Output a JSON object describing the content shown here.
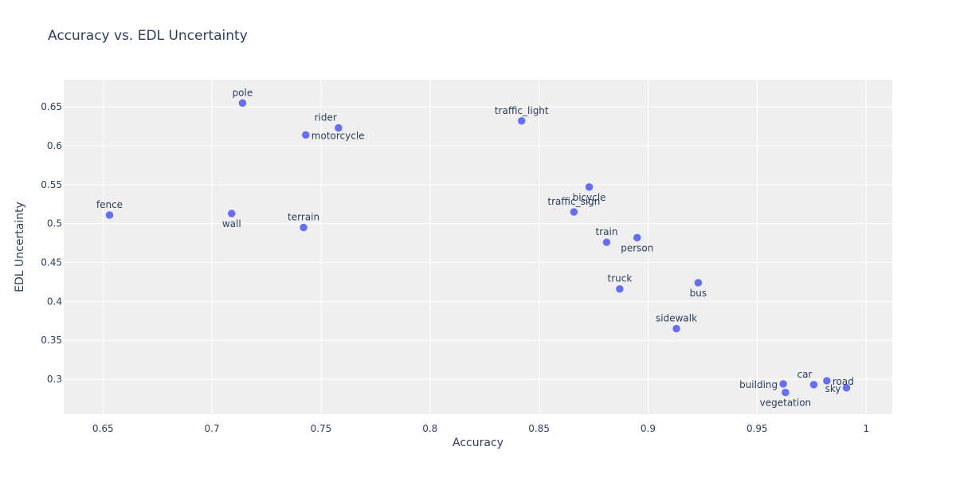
{
  "chart_data": {
    "type": "scatter",
    "title": "Accuracy vs. EDL Uncertainty",
    "xlabel": "Accuracy",
    "ylabel": "EDL Uncertainty",
    "xlim": [
      0.632,
      1.012
    ],
    "ylim": [
      0.255,
      0.685
    ],
    "x_ticks": [
      "0.65",
      "0.7",
      "0.75",
      "0.8",
      "0.85",
      "0.9",
      "0.95",
      "1"
    ],
    "y_ticks": [
      "0.3",
      "0.35",
      "0.4",
      "0.45",
      "0.5",
      "0.55",
      "0.6",
      "0.65"
    ],
    "grid": true,
    "marker_color": "#636efa",
    "plot_bgcolor": "#efefef",
    "points": [
      {
        "label": "pole",
        "x": 0.714,
        "y": 0.655,
        "pos": "top"
      },
      {
        "label": "rider",
        "x": 0.758,
        "y": 0.623,
        "pos": "top-left"
      },
      {
        "label": "motorcycle",
        "x": 0.743,
        "y": 0.614,
        "pos": "right"
      },
      {
        "label": "traffic_light",
        "x": 0.842,
        "y": 0.632,
        "pos": "top"
      },
      {
        "label": "bicycle",
        "x": 0.873,
        "y": 0.547,
        "pos": "bottom"
      },
      {
        "label": "traffic_sign",
        "x": 0.866,
        "y": 0.515,
        "pos": "top"
      },
      {
        "label": "fence",
        "x": 0.653,
        "y": 0.511,
        "pos": "top"
      },
      {
        "label": "wall",
        "x": 0.709,
        "y": 0.513,
        "pos": "bottom"
      },
      {
        "label": "terrain",
        "x": 0.742,
        "y": 0.495,
        "pos": "top"
      },
      {
        "label": "train",
        "x": 0.881,
        "y": 0.476,
        "pos": "top"
      },
      {
        "label": "person",
        "x": 0.895,
        "y": 0.482,
        "pos": "bottom"
      },
      {
        "label": "truck",
        "x": 0.887,
        "y": 0.416,
        "pos": "top"
      },
      {
        "label": "bus",
        "x": 0.923,
        "y": 0.424,
        "pos": "bottom"
      },
      {
        "label": "sidewalk",
        "x": 0.913,
        "y": 0.365,
        "pos": "top"
      },
      {
        "label": "car",
        "x": 0.976,
        "y": 0.293,
        "pos": "top-left"
      },
      {
        "label": "road",
        "x": 0.982,
        "y": 0.298,
        "pos": "right"
      },
      {
        "label": "building",
        "x": 0.962,
        "y": 0.294,
        "pos": "left"
      },
      {
        "label": "sky",
        "x": 0.991,
        "y": 0.289,
        "pos": "left"
      },
      {
        "label": "vegetation",
        "x": 0.963,
        "y": 0.283,
        "pos": "bottom-left"
      }
    ]
  }
}
